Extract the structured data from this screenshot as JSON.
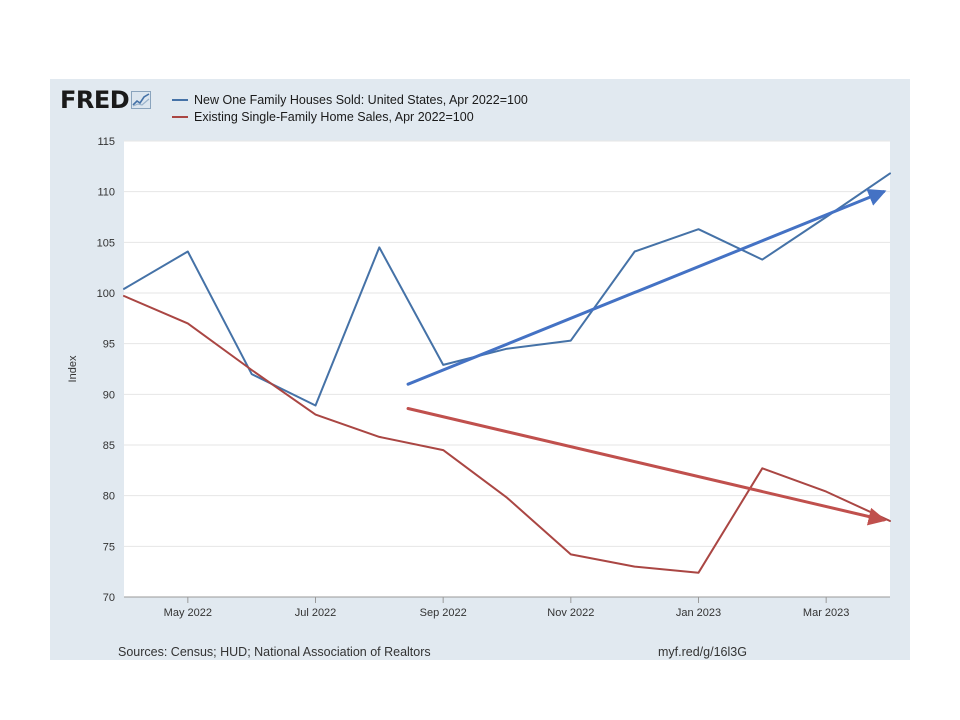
{
  "logo": {
    "text": "FRED"
  },
  "footer": {
    "source": "Sources: Census; HUD; National Association of Realtors",
    "url": "myf.red/g/16l3G"
  },
  "chart_data": {
    "type": "line",
    "title": "",
    "xlabel": "",
    "ylabel": "Index",
    "ylim": [
      70,
      115
    ],
    "yticks": [
      70,
      75,
      80,
      85,
      90,
      95,
      100,
      105,
      110,
      115
    ],
    "x": [
      "Apr 2022",
      "May 2022",
      "Jun 2022",
      "Jul 2022",
      "Aug 2022",
      "Sep 2022",
      "Oct 2022",
      "Nov 2022",
      "Dec 2022",
      "Jan 2023",
      "Feb 2023",
      "Mar 2023",
      "Apr 2023"
    ],
    "xticks": [
      {
        "label": "May 2022",
        "index": 1
      },
      {
        "label": "Jul 2022",
        "index": 3
      },
      {
        "label": "Sep 2022",
        "index": 5
      },
      {
        "label": "Nov 2022",
        "index": 7
      },
      {
        "label": "Jan 2023",
        "index": 9
      },
      {
        "label": "Mar 2023",
        "index": 11
      }
    ],
    "grid": true,
    "legend_position": "top-left",
    "series": [
      {
        "name": "New One Family Houses Sold: United States, Apr 2022=100",
        "color": "#4572a7",
        "values": [
          100.4,
          104.1,
          92.0,
          88.9,
          104.5,
          92.9,
          94.5,
          95.3,
          104.1,
          106.3,
          103.3,
          107.5,
          111.8
        ]
      },
      {
        "name": "Existing Single-Family Home Sales, Apr 2022=100",
        "color": "#aa4643",
        "values": [
          99.7,
          97.0,
          92.4,
          88.0,
          85.8,
          84.5,
          79.8,
          74.2,
          73.0,
          72.4,
          82.7,
          80.4,
          77.5
        ]
      }
    ],
    "annotations": [
      {
        "type": "trend-arrow",
        "color": "#4472c4",
        "from": {
          "x": 4.45,
          "y": 91.0
        },
        "to": {
          "x": 11.9,
          "y": 110.0
        }
      },
      {
        "type": "trend-arrow",
        "color": "#c0504d",
        "from": {
          "x": 4.45,
          "y": 88.6
        },
        "to": {
          "x": 11.9,
          "y": 77.6
        }
      }
    ]
  }
}
